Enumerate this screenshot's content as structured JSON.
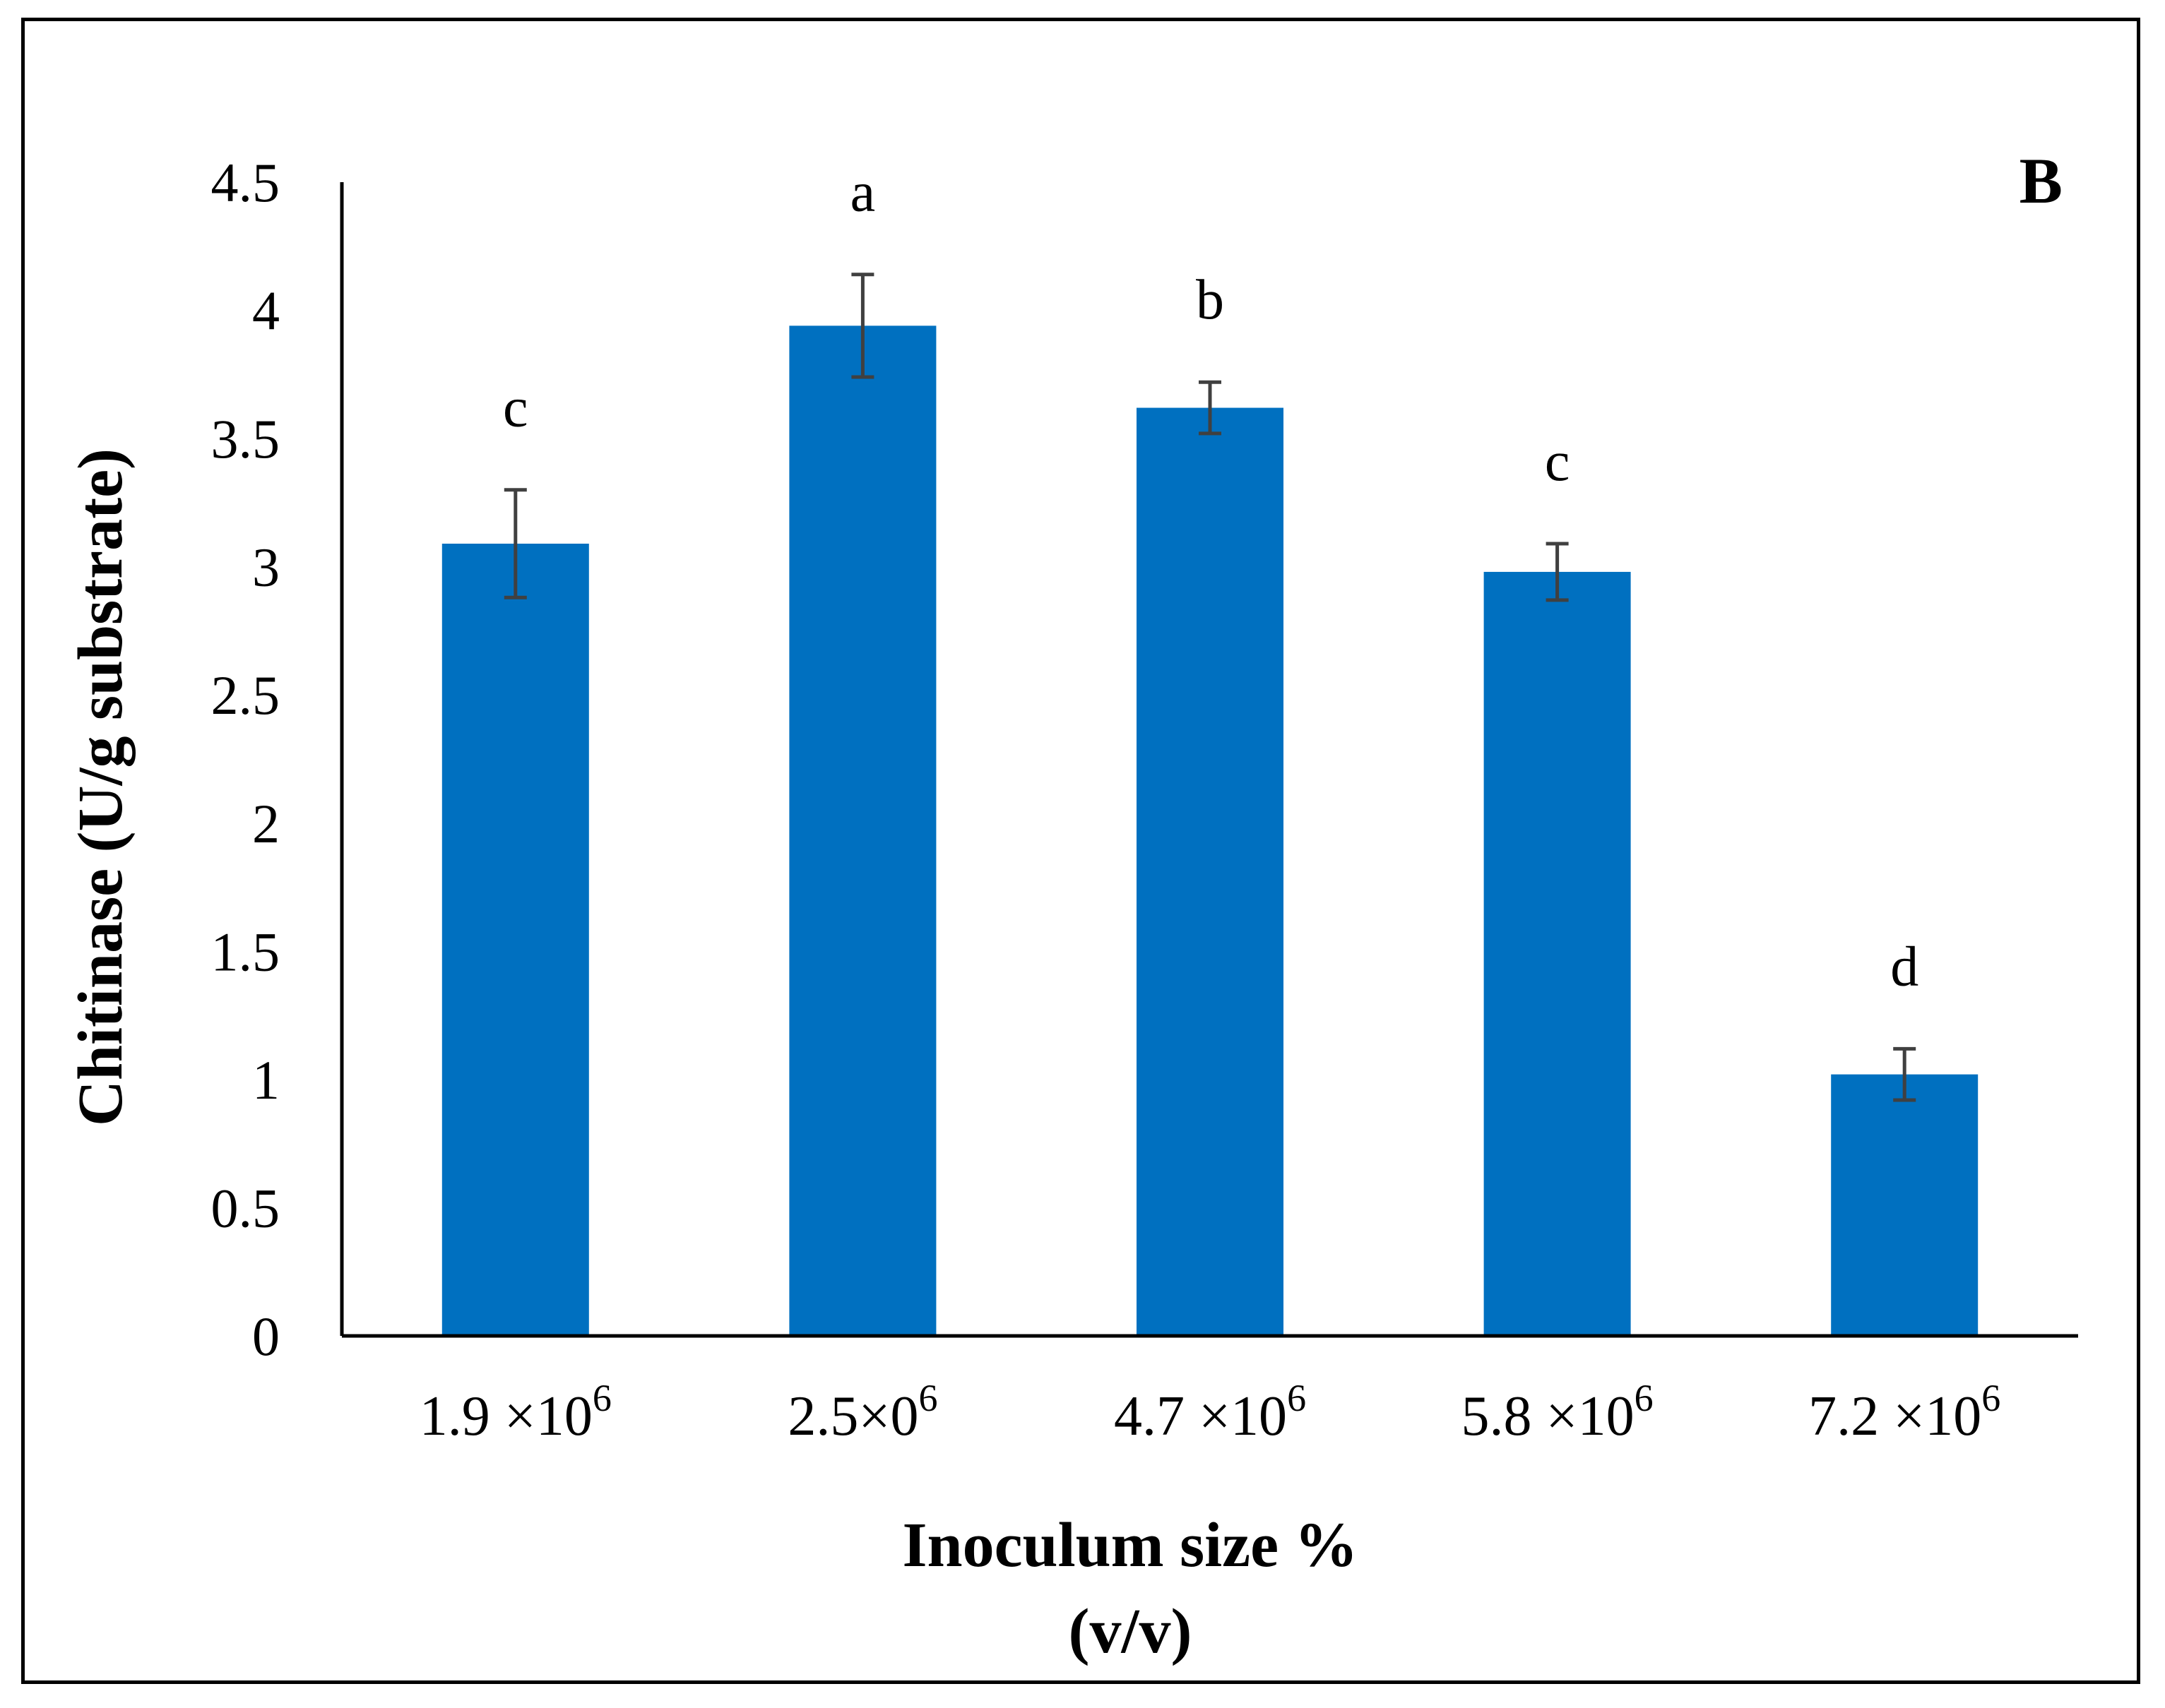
{
  "chart_data": {
    "type": "bar",
    "panel_label": "B",
    "xlabel": "Inoculum size %",
    "xlabel_sub": "(v/v)",
    "ylabel": "Chitinase (U/g substrate)",
    "ylim": [
      0,
      4.5
    ],
    "yticks": [
      "0",
      "0.5",
      "1",
      "1.5",
      "2",
      "2.5",
      "3",
      "3.5",
      "4",
      "4.5"
    ],
    "categories": [
      {
        "base": "1.9 ×10",
        "exp": "6"
      },
      {
        "base": "2.5×0",
        "exp": "6"
      },
      {
        "base": "4.7 ×10",
        "exp": "6"
      },
      {
        "base": "5.8 ×10",
        "exp": "6"
      },
      {
        "base": "7.2 ×10",
        "exp": "6"
      }
    ],
    "values": [
      3.09,
      3.94,
      3.62,
      2.98,
      1.02
    ],
    "errors": [
      0.21,
      0.2,
      0.1,
      0.11,
      0.1
    ],
    "significance": [
      "c",
      "a",
      "b",
      "c",
      "d"
    ],
    "bar_color": "#0070C0",
    "error_color": "#404040",
    "grid": false
  }
}
